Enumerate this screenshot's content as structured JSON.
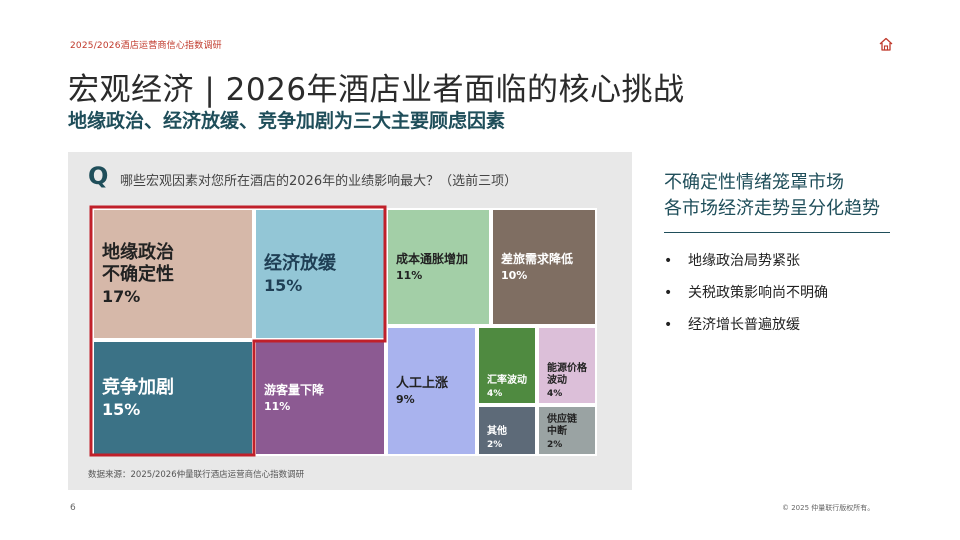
{
  "header": {
    "report_label": "2025/2026酒店运营商信心指数调研",
    "home_icon": "home-icon",
    "title": "宏观经济 | 2026年酒店业者面临的核心挑战",
    "subtitle": "地缘政治、经济放缓、竞争加剧为三大主要顾虑因素"
  },
  "panel": {
    "q_letter": "Q",
    "question": "哪些宏观因素对您所在酒店的2026年的业绩影响最大？（选前三项）",
    "source": "数据来源：2025/2026仲量联行酒店运营商信心指数调研"
  },
  "chart_data": {
    "type": "treemap",
    "top_three_highlighted": true,
    "items": [
      {
        "label_lines": [
          "地缘政治",
          "不确定性"
        ],
        "value": 17,
        "pct": "17%",
        "color": "#d6b8a9",
        "text_color": "#222222"
      },
      {
        "label_lines": [
          "经济放缓"
        ],
        "value": 15,
        "pct": "15%",
        "color": "#93c6d6",
        "text_color": "#1f3f55"
      },
      {
        "label_lines": [
          "竞争加剧"
        ],
        "value": 15,
        "pct": "15%",
        "color": "#3b7286",
        "text_color": "#ffffff"
      },
      {
        "label_lines": [
          "成本通胀增加"
        ],
        "value": 11,
        "pct": "11%",
        "color": "#a3cfa7",
        "text_color": "#222222"
      },
      {
        "label_lines": [
          "差旅需求降低"
        ],
        "value": 10,
        "pct": "10%",
        "color": "#7f6e62",
        "text_color": "#ffffff"
      },
      {
        "label_lines": [
          "游客量下降"
        ],
        "value": 11,
        "pct": "11%",
        "color": "#8c5a92",
        "text_color": "#ffffff"
      },
      {
        "label_lines": [
          "人工上涨"
        ],
        "value": 9,
        "pct": "9%",
        "color": "#a9b3ee",
        "text_color": "#222222"
      },
      {
        "label_lines": [
          "汇率波动"
        ],
        "value": 4,
        "pct": "4%",
        "color": "#4f8a40",
        "text_color": "#ffffff"
      },
      {
        "label_lines": [
          "能源价格",
          "波动"
        ],
        "value": 4,
        "pct": "4%",
        "color": "#dcbfd9",
        "text_color": "#222222"
      },
      {
        "label_lines": [
          "其他"
        ],
        "value": 2,
        "pct": "2%",
        "color": "#5d6a78",
        "text_color": "#ffffff"
      },
      {
        "label_lines": [
          "供应链",
          "中断"
        ],
        "value": 2,
        "pct": "2%",
        "color": "#9aa3a3",
        "text_color": "#222222"
      }
    ]
  },
  "right": {
    "title_line1": "不确定性情绪笼罩市场",
    "title_line2": "各市场经济走势呈分化趋势",
    "bullet_char": "•",
    "bullets": [
      "地缘政治局势紧张",
      "关税政策影响尚不明确",
      "经济增长普遍放缓"
    ]
  },
  "footer": {
    "page_number": "6",
    "copyright": "© 2025 仲量联行版权所有。"
  }
}
